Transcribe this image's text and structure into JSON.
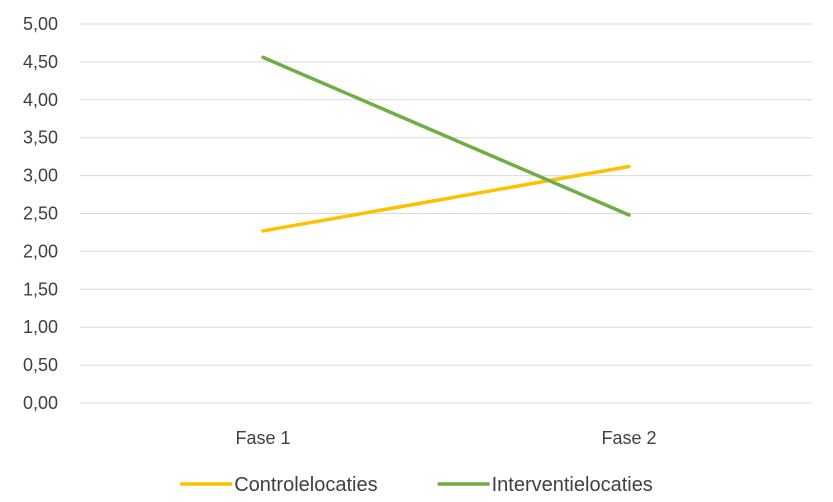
{
  "chart_data": {
    "type": "line",
    "categories": [
      "Fase 1",
      "Fase 2"
    ],
    "series": [
      {
        "name": "Controlelocaties",
        "values": [
          2.27,
          3.12
        ],
        "color": "#FFC000"
      },
      {
        "name": "Interventielocaties",
        "values": [
          4.56,
          2.48
        ],
        "color": "#70AD47"
      }
    ],
    "ylim": [
      0,
      5
    ],
    "yticks": [
      "0,00",
      "0,50",
      "1,00",
      "1,50",
      "2,00",
      "2,50",
      "3,00",
      "3,50",
      "4,00",
      "4,50",
      "5,00"
    ],
    "grid": true,
    "legend_position": "bottom",
    "gridline_color": "#d9d9d9"
  }
}
